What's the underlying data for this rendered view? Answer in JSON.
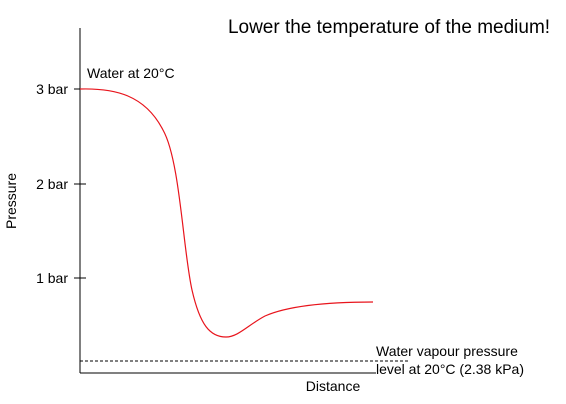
{
  "headline": "Lower the temperature of the medium!",
  "y_axis_label": "Pressure",
  "x_axis_label": "Distance",
  "start_label": "Water at 20°C",
  "vapour_label_line1": "Water vapour pressure",
  "vapour_label_line2": "level at 20°C (2.38 kPa)",
  "y_ticks": [
    "3 bar",
    "2 bar",
    "1 bar"
  ],
  "colors": {
    "curve": "#e8141c",
    "axes": "#000000",
    "dashed_line": "#000000",
    "background": "#ffffff"
  }
}
